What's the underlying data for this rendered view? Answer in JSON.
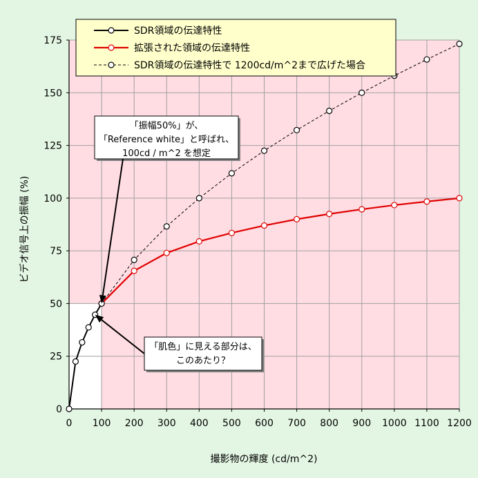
{
  "chart_data": {
    "type": "line",
    "xlabel": "撮影物の輝度 (cd/m^2)",
    "ylabel": "ビデオ信号上の振幅 (%)",
    "xlim": [
      0,
      1200
    ],
    "ylim": [
      0,
      175
    ],
    "x_ticks": [
      "0",
      "100",
      "200",
      "300",
      "400",
      "500",
      "600",
      "700",
      "800",
      "900",
      "1000",
      "1100",
      "1200"
    ],
    "y_ticks": [
      "0",
      "25",
      "50",
      "75",
      "100",
      "125",
      "150",
      "175"
    ],
    "grid": true,
    "legend_position": "top",
    "colors": {
      "background": "#e3f6e3",
      "plot_area": "#ffdde3",
      "sdr_region": "#ffffff",
      "grid": "#a0a0a0",
      "sdr_series": "#000000",
      "extended_series": "#e00000",
      "extrapolated_series": "#000000"
    },
    "sdr_region": {
      "x_max": 100,
      "y_max": 50
    },
    "series": [
      {
        "name": "SDR領域の伝達特性",
        "style": "solid",
        "x": [
          0,
          20,
          40,
          60,
          80,
          100
        ],
        "values": [
          0,
          22.5,
          31.6,
          38.7,
          44.7,
          50
        ]
      },
      {
        "name": "拡張された領域の伝達特性",
        "style": "solid",
        "x": [
          100,
          200,
          300,
          400,
          500,
          600,
          700,
          800,
          900,
          1000,
          1100,
          1200
        ],
        "values": [
          50,
          65.5,
          74,
          79.5,
          83.5,
          87,
          90,
          92.5,
          94.7,
          96.7,
          98.4,
          100
        ]
      },
      {
        "name": "SDR領域の伝達特性で 1200cd/m^2まで広げた場合",
        "style": "dashed",
        "x": [
          100,
          200,
          300,
          400,
          500,
          600,
          700,
          800,
          900,
          1000,
          1100,
          1200
        ],
        "values": [
          50,
          70.7,
          86.6,
          100,
          111.8,
          122.5,
          132.3,
          141.4,
          150,
          158.1,
          165.8,
          173.2
        ]
      }
    ],
    "annotations": [
      {
        "lines": [
          "「振幅50%」が、",
          "「Reference white」と呼ばれ、",
          "100cd / m^2 を想定"
        ],
        "target": [
          100,
          50
        ]
      },
      {
        "lines": [
          "「肌色」に見える部分は、",
          "このあたり？"
        ],
        "target": [
          80,
          44.7
        ]
      }
    ]
  }
}
